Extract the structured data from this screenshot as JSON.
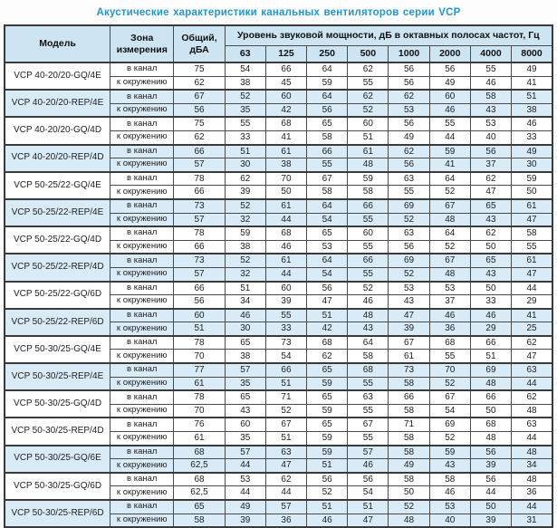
{
  "title": "Акустические характеристики канальных вентиляторов  серии VCP",
  "table": {
    "headers": {
      "model": "Модель",
      "zone": "Зона измерения",
      "total": "Общий, дБА",
      "spl_group": "Уровень звуковой мощности, дБ в октавных полосах частот, Гц",
      "frequencies": [
        "63",
        "125",
        "250",
        "500",
        "1000",
        "2000",
        "4000",
        "8000"
      ]
    },
    "zone_labels": [
      "в канал",
      "к окружению"
    ],
    "rows": [
      {
        "model": "VCP 40-20/20-GQ/4E",
        "shaded": false,
        "duct": {
          "total": "75",
          "bands": [
            54,
            66,
            64,
            62,
            56,
            56,
            55,
            49
          ]
        },
        "ambient": {
          "total": "62",
          "bands": [
            38,
            45,
            59,
            55,
            56,
            49,
            46,
            41
          ]
        }
      },
      {
        "model": "VCP 40-20/20-REP/4E",
        "shaded": true,
        "duct": {
          "total": "67",
          "bands": [
            52,
            60,
            64,
            62,
            62,
            60,
            58,
            51
          ]
        },
        "ambient": {
          "total": "56",
          "bands": [
            35,
            42,
            56,
            52,
            53,
            46,
            43,
            38
          ]
        }
      },
      {
        "model": "VCP 40-20/20-GQ/4D",
        "shaded": false,
        "duct": {
          "total": "75",
          "bands": [
            55,
            68,
            65,
            60,
            56,
            55,
            53,
            46
          ]
        },
        "ambient": {
          "total": "62",
          "bands": [
            33,
            41,
            58,
            51,
            49,
            44,
            40,
            33
          ]
        }
      },
      {
        "model": "VCP 40-20/20-REP/4D",
        "shaded": true,
        "duct": {
          "total": "66",
          "bands": [
            51,
            61,
            66,
            61,
            62,
            59,
            56,
            49
          ]
        },
        "ambient": {
          "total": "57",
          "bands": [
            30,
            38,
            55,
            48,
            56,
            41,
            37,
            30
          ]
        }
      },
      {
        "model": "VCP 50-25/22-GQ/4E",
        "shaded": false,
        "duct": {
          "total": "78",
          "bands": [
            62,
            70,
            67,
            59,
            63,
            64,
            62,
            59
          ]
        },
        "ambient": {
          "total": "66",
          "bands": [
            39,
            50,
            58,
            58,
            55,
            52,
            47,
            50
          ]
        }
      },
      {
        "model": "VCP 50-25/22-REP/4E",
        "shaded": true,
        "duct": {
          "total": "73",
          "bands": [
            52,
            61,
            64,
            66,
            69,
            67,
            65,
            61
          ]
        },
        "ambient": {
          "total": "57",
          "bands": [
            32,
            44,
            54,
            55,
            52,
            48,
            43,
            47
          ]
        }
      },
      {
        "model": "VCP 50-25/22-GQ/4D",
        "shaded": false,
        "duct": {
          "total": "78",
          "bands": [
            59,
            68,
            65,
            60,
            63,
            64,
            62,
            58
          ]
        },
        "ambient": {
          "total": "66",
          "bands": [
            38,
            46,
            53,
            55,
            56,
            52,
            50,
            55
          ]
        }
      },
      {
        "model": "VCP 50-25/22-REP/4D",
        "shaded": true,
        "duct": {
          "total": "73",
          "bands": [
            52,
            61,
            64,
            66,
            69,
            67,
            65,
            61
          ]
        },
        "ambient": {
          "total": "57",
          "bands": [
            32,
            44,
            54,
            55,
            52,
            48,
            43,
            47
          ]
        }
      },
      {
        "model": "VCP 50-25/22-GQ/6D",
        "shaded": false,
        "duct": {
          "total": "66",
          "bands": [
            51,
            60,
            56,
            52,
            53,
            53,
            50,
            44
          ]
        },
        "ambient": {
          "total": "56",
          "bands": [
            34,
            39,
            47,
            46,
            43,
            37,
            33,
            29
          ]
        }
      },
      {
        "model": "VCP 50-25/22-REP/6D",
        "shaded": true,
        "duct": {
          "total": "60",
          "bands": [
            46,
            55,
            51,
            48,
            47,
            46,
            46,
            41
          ]
        },
        "ambient": {
          "total": "51",
          "bands": [
            30,
            33,
            42,
            43,
            39,
            36,
            29,
            25
          ]
        }
      },
      {
        "model": "VCP 50-30/25-GQ/4E",
        "shaded": false,
        "duct": {
          "total": "78",
          "bands": [
            65,
            73,
            68,
            64,
            67,
            68,
            66,
            62
          ]
        },
        "ambient": {
          "total": "70",
          "bands": [
            38,
            54,
            62,
            58,
            61,
            55,
            51,
            47
          ]
        }
      },
      {
        "model": "VCP 50-30/25-REP/4E",
        "shaded": true,
        "duct": {
          "total": "77",
          "bands": [
            57,
            66,
            65,
            68,
            73,
            70,
            69,
            63
          ]
        },
        "ambient": {
          "total": "61",
          "bands": [
            35,
            51,
            59,
            55,
            58,
            52,
            48,
            44
          ]
        }
      },
      {
        "model": "VCP 50-30/25-GQ/4D",
        "shaded": false,
        "duct": {
          "total": "78",
          "bands": [
            65,
            71,
            65,
            63,
            66,
            67,
            66,
            62
          ]
        },
        "ambient": {
          "total": "70",
          "bands": [
            43,
            52,
            59,
            55,
            58,
            54,
            50,
            48
          ]
        }
      },
      {
        "model": "VCP 50-30/25-REP/4D",
        "shaded": false,
        "duct": {
          "total": "76",
          "bands": [
            60,
            67,
            65,
            67,
            71,
            69,
            68,
            63
          ]
        },
        "ambient": {
          "total": "61",
          "bands": [
            35,
            51,
            59,
            55,
            58,
            52,
            48,
            44
          ]
        }
      },
      {
        "model": "VCP 50-30/25-GQ/6E",
        "shaded": true,
        "duct": {
          "total": "68",
          "bands": [
            57,
            63,
            59,
            57,
            58,
            59,
            56,
            48
          ]
        },
        "ambient": {
          "total": "62,5",
          "bands": [
            44,
            47,
            51,
            46,
            49,
            43,
            39,
            34
          ]
        }
      },
      {
        "model": "VCP 50-30/25-GQ/6D",
        "shaded": false,
        "duct": {
          "total": "68",
          "bands": [
            53,
            62,
            56,
            56,
            58,
            58,
            56,
            48
          ]
        },
        "ambient": {
          "total": "62,5",
          "bands": [
            44,
            44,
            52,
            54,
            50,
            46,
            44,
            36
          ]
        }
      },
      {
        "model": "VCP 50-30/25-REP/6D",
        "shaded": true,
        "duct": {
          "total": "65",
          "bands": [
            49,
            57,
            51,
            51,
            52,
            53,
            50,
            44
          ]
        },
        "ambient": {
          "total": "58",
          "bands": [
            39,
            36,
            46,
            47,
            48,
            40,
            39,
            31
          ]
        }
      }
    ]
  }
}
